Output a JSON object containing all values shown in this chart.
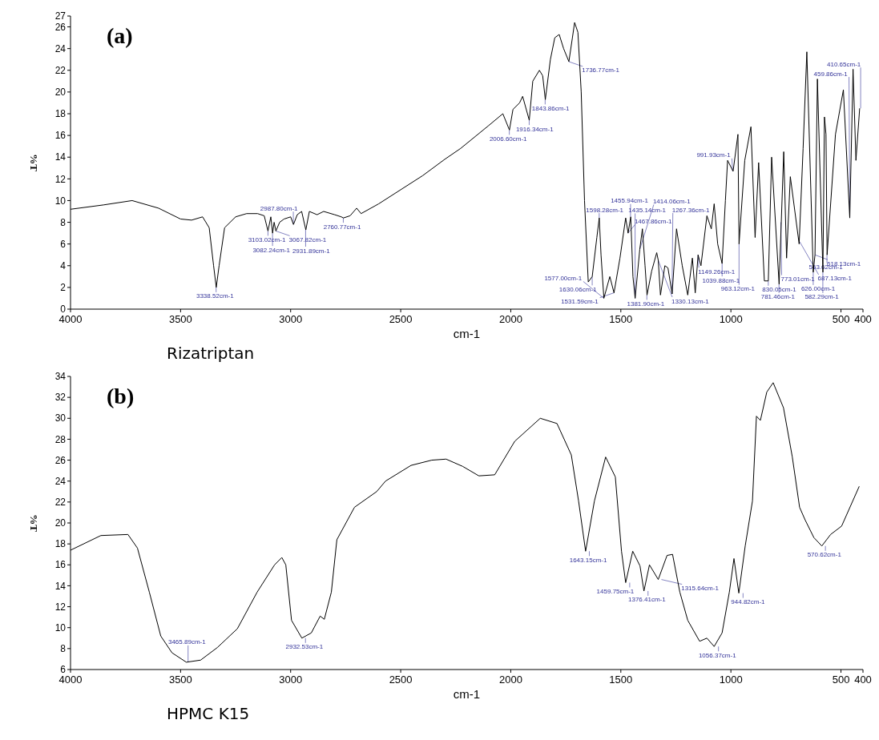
{
  "chart_data": [
    {
      "type": "line",
      "title": "(a)",
      "xlabel": "cm-1",
      "ylabel": "%T",
      "xlim": [
        4000,
        400
      ],
      "xticks": [
        4000,
        3500,
        3000,
        2500,
        2000,
        1500,
        1000,
        500,
        400
      ],
      "ylim": [
        0,
        27
      ],
      "yticks": [
        0,
        2,
        4,
        6,
        8,
        10,
        12,
        14,
        16,
        18,
        20,
        22,
        24,
        26,
        27
      ],
      "grid": false,
      "line_style": "solid",
      "series": [
        {
          "color": "#000000",
          "x": [
            4000,
            3850,
            3720,
            3600,
            3500,
            3450,
            3400,
            3370,
            3350,
            3338,
            3325,
            3300,
            3250,
            3200,
            3150,
            3120,
            3103,
            3090,
            3082,
            3075,
            3067,
            3050,
            3030,
            3000,
            2987,
            2970,
            2950,
            2931,
            2915,
            2880,
            2850,
            2800,
            2770,
            2760,
            2730,
            2700,
            2680,
            2600,
            2500,
            2400,
            2300,
            2228,
            2101,
            2036,
            2006,
            1990,
            1960,
            1946,
            1916,
            1900,
            1870,
            1855,
            1843,
            1820,
            1800,
            1780,
            1760,
            1736,
            1720,
            1710,
            1695,
            1680,
            1665,
            1648,
            1630,
            1609,
            1598,
            1590,
            1577,
            1550,
            1531,
            1504,
            1478,
            1467,
            1455,
            1445,
            1435,
            1414,
            1402,
            1390,
            1381,
            1360,
            1337,
            1330,
            1320,
            1300,
            1286,
            1267,
            1247,
            1221,
            1196,
            1175,
            1162,
            1149,
            1136,
            1109,
            1089,
            1076,
            1060,
            1040,
            1025,
            1015,
            990,
            968,
            963,
            937,
            909,
            890,
            874,
            848,
            830,
            815,
            781,
            760,
            747,
            730,
            690,
            672,
            655,
            626,
            618,
            607,
            582,
            575,
            568,
            563,
            525,
            489,
            460,
            445,
            432,
            415
          ],
          "values": [
            9.2,
            9.6,
            10.0,
            9.3,
            8.3,
            8.2,
            8.5,
            7.5,
            4.0,
            2.0,
            4.0,
            7.5,
            8.5,
            8.8,
            8.8,
            8.6,
            7.2,
            8.5,
            7.0,
            8.0,
            7.2,
            8.0,
            8.3,
            8.5,
            7.8,
            8.7,
            9.0,
            7.3,
            9.0,
            8.7,
            9.0,
            8.7,
            8.5,
            8.4,
            8.6,
            9.3,
            8.8,
            9.7,
            11.0,
            12.3,
            13.8,
            14.8,
            16.9,
            18.0,
            16.5,
            18.4,
            19.0,
            19.6,
            17.4,
            21.0,
            22.0,
            21.5,
            19.3,
            23.0,
            25.0,
            25.3,
            24.0,
            22.8,
            25.0,
            26.4,
            25.5,
            20.0,
            10.0,
            2.5,
            3.0,
            6.6,
            8.4,
            5.0,
            1.0,
            3.0,
            1.5,
            4.7,
            8.4,
            7.0,
            8.5,
            3.0,
            1.0,
            5.5,
            7.4,
            4.0,
            1.3,
            3.5,
            5.2,
            4.5,
            1.3,
            4.0,
            3.8,
            1.4,
            7.4,
            4.0,
            1.3,
            4.7,
            1.5,
            5.0,
            4.0,
            8.6,
            7.4,
            9.7,
            6.0,
            4.2,
            10.0,
            13.7,
            12.7,
            16.1,
            6.0,
            13.7,
            16.8,
            6.6,
            13.5,
            2.6,
            2.6,
            14.0,
            2.3,
            14.5,
            4.7,
            12.2,
            6.0,
            14.8,
            23.7,
            3.4,
            5.0,
            21.2,
            3.4,
            17.7,
            16.1,
            5.0,
            16.1,
            20.2,
            8.4,
            22.1,
            13.7,
            18.5
          ]
        }
      ],
      "annotations": [
        {
          "text": "3338.52cm-1",
          "x": 3338.52,
          "y": 2.0
        },
        {
          "text": "3103.02cm-1",
          "x": 3103.02,
          "y": 7.2
        },
        {
          "text": "3082.24cm-1",
          "x": 3082.24,
          "y": 7.0
        },
        {
          "text": "3067.82cm-1",
          "x": 3067.82,
          "y": 7.2
        },
        {
          "text": "2987.80cm-1",
          "x": 2987.8,
          "y": 7.8
        },
        {
          "text": "2931.89cm-1",
          "x": 2931.89,
          "y": 7.3
        },
        {
          "text": "2760.77cm-1",
          "x": 2760.77,
          "y": 8.4
        },
        {
          "text": "2006.60cm-1",
          "x": 2006.6,
          "y": 16.5
        },
        {
          "text": "1916.34cm-1",
          "x": 1916.34,
          "y": 17.4
        },
        {
          "text": "1843.86cm-1",
          "x": 1843.86,
          "y": 19.3
        },
        {
          "text": "1736.77cm-1",
          "x": 1736.77,
          "y": 22.8
        },
        {
          "text": "1630.06cm-1",
          "x": 1630.06,
          "y": 3.0
        },
        {
          "text": "1598.28cm-1",
          "x": 1598.28,
          "y": 8.4
        },
        {
          "text": "1577.00cm-1",
          "x": 1577.0,
          "y": 1.0
        },
        {
          "text": "1531.59cm-1",
          "x": 1531.59,
          "y": 1.5
        },
        {
          "text": "1467.86cm-1",
          "x": 1467.86,
          "y": 7.0
        },
        {
          "text": "1455.94cm-1",
          "x": 1455.94,
          "y": 8.5
        },
        {
          "text": "1435.14cm-1",
          "x": 1435.14,
          "y": 1.0
        },
        {
          "text": "1414.06cm-1",
          "x": 1414.06,
          "y": 5.5
        },
        {
          "text": "1381.90cm-1",
          "x": 1381.9,
          "y": 1.3
        },
        {
          "text": "1330.13cm-1",
          "x": 1330.13,
          "y": 4.5
        },
        {
          "text": "1267.36cm-1",
          "x": 1267.36,
          "y": 1.4
        },
        {
          "text": "1149.26cm-1",
          "x": 1149.26,
          "y": 5.0
        },
        {
          "text": "1039.88cm-1",
          "x": 1039.88,
          "y": 4.2
        },
        {
          "text": "991.93cm-1",
          "x": 991.93,
          "y": 12.7
        },
        {
          "text": "963.12cm-1",
          "x": 963.12,
          "y": 6.0
        },
        {
          "text": "830.05cm-1",
          "x": 830.05,
          "y": 2.6
        },
        {
          "text": "781.46cm-1",
          "x": 781.46,
          "y": 2.3
        },
        {
          "text": "773.01cm-1",
          "x": 773.01,
          "y": 8.0
        },
        {
          "text": "687.13cm-1",
          "x": 687.13,
          "y": 6.2
        },
        {
          "text": "626.00cm-1",
          "x": 626.0,
          "y": 3.4
        },
        {
          "text": "618.13cm-1",
          "x": 618.13,
          "y": 5.0
        },
        {
          "text": "582.29cm-1",
          "x": 582.29,
          "y": 3.4
        },
        {
          "text": "563.62cm-1",
          "x": 563.62,
          "y": 5.0
        },
        {
          "text": "459.86cm-1",
          "x": 459.86,
          "y": 8.4
        },
        {
          "text": "410.65cm-1",
          "x": 410.65,
          "y": 18.5
        },
        "Rizatriptan"
      ]
    },
    {
      "type": "line",
      "title": "(b)",
      "xlabel": "cm-1",
      "ylabel": "%T",
      "xlim": [
        4000,
        400
      ],
      "xticks": [
        4000,
        3500,
        3000,
        2500,
        2000,
        1500,
        1000,
        500,
        400
      ],
      "ylim": [
        6,
        34
      ],
      "yticks": [
        6,
        8,
        10,
        12,
        14,
        16,
        18,
        20,
        22,
        24,
        26,
        28,
        30,
        32,
        34
      ],
      "grid": false,
      "line_style": "solid",
      "series": [
        {
          "color": "#000000",
          "x": [
            4000,
            3862,
            3739,
            3696,
            3642,
            3590,
            3539,
            3474,
            3409,
            3333,
            3242,
            3152,
            3073,
            3040,
            3022,
            2996,
            2949,
            2906,
            2866,
            2847,
            2815,
            2790,
            2710,
            2609,
            2569,
            2453,
            2359,
            2294,
            2218,
            2145,
            2073,
            1982,
            1866,
            1790,
            1725,
            1692,
            1660,
            1620,
            1569,
            1525,
            1497,
            1478,
            1446,
            1413,
            1395,
            1370,
            1330,
            1290,
            1265,
            1232,
            1196,
            1142,
            1109,
            1076,
            1040,
            1007,
            986,
            964,
            935,
            902,
            884,
            866,
            837,
            808,
            761,
            721,
            688,
            663,
            623,
            587,
            547,
            497,
            417
          ],
          "values": [
            17.4,
            18.8,
            18.9,
            17.6,
            13.4,
            9.2,
            7.6,
            6.7,
            6.9,
            8.1,
            9.9,
            13.4,
            16.0,
            16.7,
            16.0,
            10.7,
            9.0,
            9.5,
            11.1,
            10.8,
            13.4,
            18.4,
            21.5,
            23.0,
            24.0,
            25.5,
            26.0,
            26.1,
            25.4,
            24.5,
            24.6,
            27.8,
            30.0,
            29.5,
            26.5,
            22.1,
            17.3,
            22.1,
            26.3,
            24.4,
            17.3,
            14.3,
            17.3,
            15.9,
            13.5,
            16.0,
            14.6,
            16.9,
            17.0,
            13.4,
            10.7,
            8.7,
            9.0,
            8.2,
            9.5,
            13.4,
            16.6,
            13.3,
            17.8,
            22.1,
            30.2,
            29.8,
            32.5,
            33.4,
            31.0,
            26.3,
            21.5,
            20.3,
            18.6,
            17.8,
            18.9,
            19.7,
            23.5
          ]
        }
      ],
      "annotations": [
        {
          "text": "3465.89cm-1",
          "x": 3465.89,
          "y": 6.7
        },
        {
          "text": "2932.53cm-1",
          "x": 2932.53,
          "y": 9.0
        },
        {
          "text": "1643.15cm-1",
          "x": 1643.15,
          "y": 17.3
        },
        {
          "text": "1459.75cm-1",
          "x": 1459.75,
          "y": 14.3
        },
        {
          "text": "1376.41cm-1",
          "x": 1376.41,
          "y": 13.5
        },
        {
          "text": "1315.64cm-1",
          "x": 1315.64,
          "y": 14.6
        },
        {
          "text": "1056.37cm-1",
          "x": 1056.37,
          "y": 8.2
        },
        {
          "text": "944.82cm-1",
          "x": 944.82,
          "y": 13.3
        },
        {
          "text": "570.62cm-1",
          "x": 570.62,
          "y": 17.8
        },
        "HPMC K15"
      ]
    }
  ]
}
